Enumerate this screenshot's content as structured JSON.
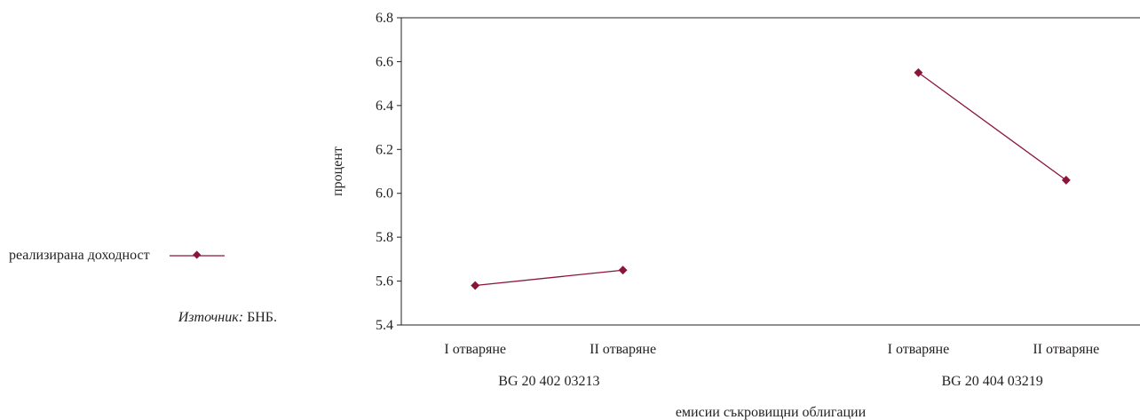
{
  "legend": {
    "label": "реализирана доходност"
  },
  "source": {
    "label": "Източник:",
    "value": "БНБ."
  },
  "colors": {
    "series": "#8b1538",
    "axis": "#231f20"
  },
  "chart_data": {
    "type": "line",
    "xlabel": "емисии съкровищни облигации",
    "ylabel": "процент",
    "ylim": [
      5.4,
      6.8
    ],
    "yticks": [
      "5.4",
      "5.6",
      "5.8",
      "6.0",
      "6.2",
      "6.4",
      "6.6",
      "6.8"
    ],
    "grid": false,
    "legend_position": "left",
    "groups": [
      {
        "name": "BG 20 402 03213",
        "categories": [
          "I отваряне",
          "II отваряне"
        ]
      },
      {
        "name": "BG 20 404 03219",
        "categories": [
          "I отваряне",
          "II отваряне"
        ]
      }
    ],
    "series": [
      {
        "name": "реализирана доходност",
        "segments": [
          [
            5.58,
            5.65
          ],
          [
            6.55,
            6.06
          ]
        ]
      }
    ]
  }
}
